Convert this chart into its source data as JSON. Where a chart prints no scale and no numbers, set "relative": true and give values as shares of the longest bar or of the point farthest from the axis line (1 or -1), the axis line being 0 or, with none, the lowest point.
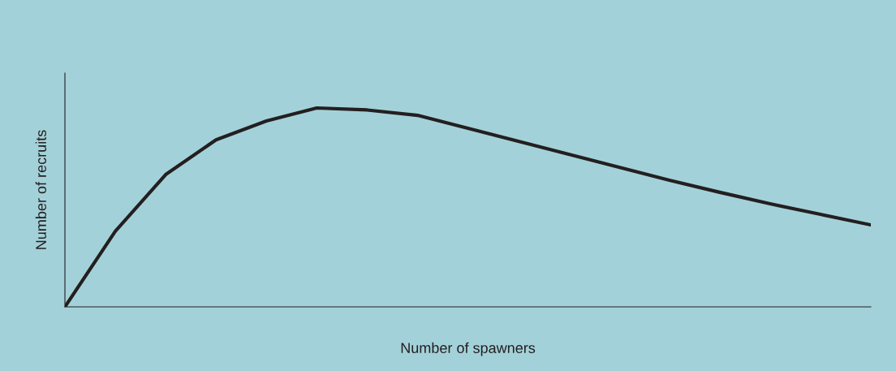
{
  "chart_data": {
    "type": "line",
    "relative": true,
    "xlabel": "Number of spawners",
    "ylabel": "Number of recruits",
    "categories": [
      null,
      null,
      null,
      null,
      null,
      null,
      null,
      null,
      null,
      null,
      null,
      null,
      null,
      null,
      null,
      null,
      null
    ],
    "series": [
      {
        "color": "#231f20",
        "values": [
          0,
          0.38,
          0.665,
          0.84,
          0.935,
          1.0,
          0.99,
          0.963,
          0.898,
          0.833,
          0.767,
          0.702,
          0.637,
          0.576,
          0.518,
          0.465,
          0.412
        ]
      }
    ],
    "grid": false,
    "legend": false,
    "marker": "none",
    "line_style": "solid"
  }
}
